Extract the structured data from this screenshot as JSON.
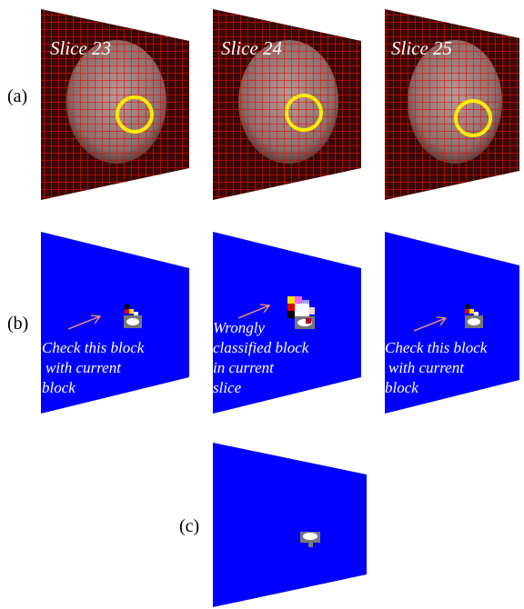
{
  "figure": {
    "row_labels": [
      "(a)",
      "(b)",
      "(c)"
    ],
    "slices": [
      "Slice 23",
      "Slice 24",
      "Slice 25"
    ],
    "annotations": [
      [
        "Check this block",
        "with current",
        "block"
      ],
      [
        "Wrongly",
        "classified block",
        "in current",
        "slice"
      ],
      [
        "Check this block",
        "with current",
        "block"
      ]
    ]
  }
}
